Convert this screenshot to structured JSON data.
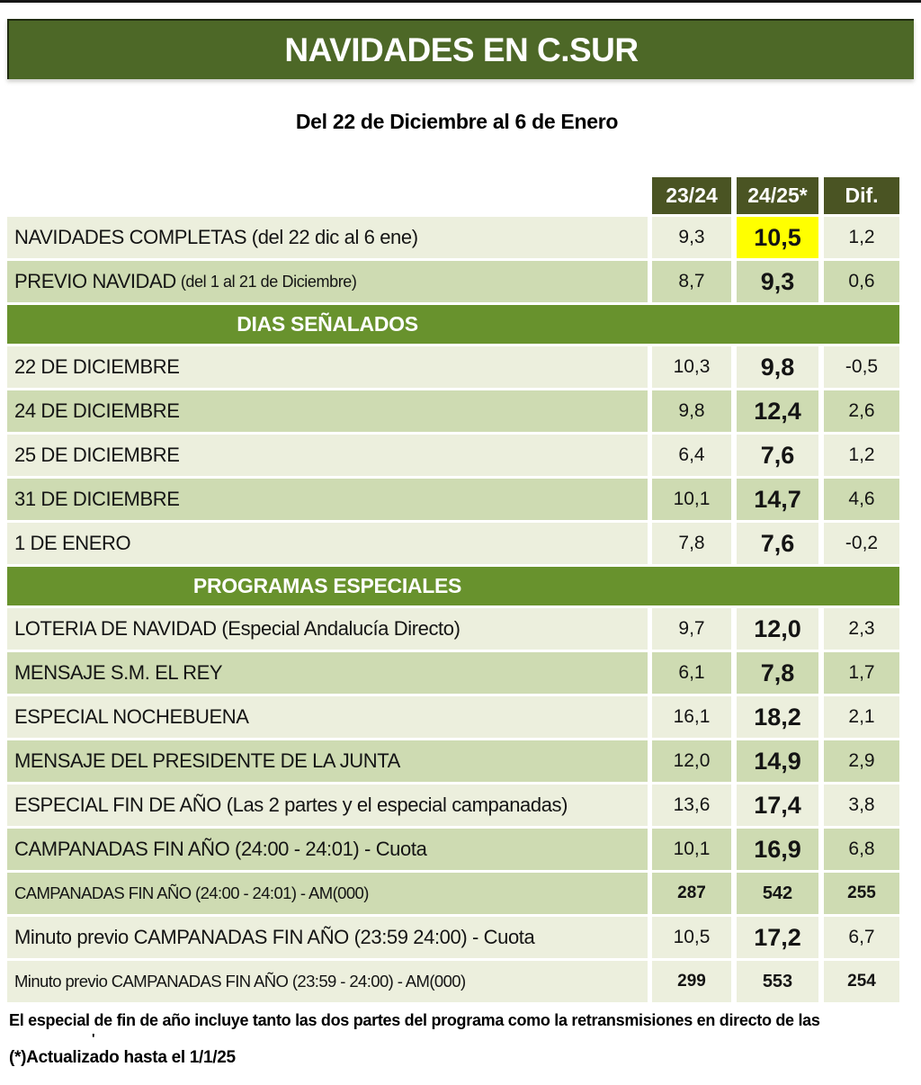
{
  "title": "NAVIDADES EN C.SUR",
  "subtitle": "Del 22 de Diciembre al 6 de Enero",
  "footnotes": [
    "El especial de fin de año incluye tanto las dos partes del programa como la retransmisiones en directo de las",
    "'",
    "(*)Actualizado hasta el 1/1/25"
  ],
  "colors": {
    "title_bar_green": "#4d6827",
    "column_header_green": "#4a5423",
    "section_bar_green": "#68922d",
    "row_light": "#ecefdd",
    "row_dark": "#cedbb2",
    "highlight_yellow": "#ffff00",
    "header_text": "#ffffff",
    "body_text": "#141414"
  },
  "chart_data": {
    "type": "table",
    "title": "NAVIDADES EN C.SUR",
    "subtitle": "Del 22 de Diciembre al 6 de Enero",
    "columns": [
      "23/24",
      "24/25*",
      "Dif."
    ],
    "rows": [
      {
        "type": "data",
        "label": "NAVIDADES COMPLETAS (del 22  dic al 6 ene)",
        "values": [
          "9,3",
          "10,5",
          "1,2"
        ],
        "shade": "light",
        "highlight": true
      },
      {
        "type": "data",
        "label": "PREVIO NAVIDAD",
        "label_detail": "(del 1 al 21 de Diciembre)",
        "values": [
          "8,7",
          "9,3",
          "0,6"
        ],
        "shade": "dark"
      },
      {
        "type": "section",
        "label": "DIAS SEÑALADOS"
      },
      {
        "type": "data",
        "label": "22 DE DICIEMBRE",
        "values": [
          "10,3",
          "9,8",
          "-0,5"
        ],
        "shade": "light"
      },
      {
        "type": "data",
        "label": "24 DE DICIEMBRE",
        "values": [
          "9,8",
          "12,4",
          "2,6"
        ],
        "shade": "dark"
      },
      {
        "type": "data",
        "label": "25 DE DICIEMBRE",
        "values": [
          "6,4",
          "7,6",
          "1,2"
        ],
        "shade": "light"
      },
      {
        "type": "data",
        "label": "31 DE DICIEMBRE",
        "values": [
          "10,1",
          "14,7",
          "4,6"
        ],
        "shade": "dark"
      },
      {
        "type": "data",
        "label": "1 DE ENERO",
        "values": [
          "7,8",
          "7,6",
          "-0,2"
        ],
        "shade": "light"
      },
      {
        "type": "section",
        "label": "PROGRAMAS ESPECIALES"
      },
      {
        "type": "data",
        "label": "LOTERIA DE NAVIDAD (Especial Andalucía Directo)",
        "values": [
          "9,7",
          "12,0",
          "2,3"
        ],
        "shade": "light"
      },
      {
        "type": "data",
        "label": "MENSAJE S.M. EL REY",
        "values": [
          "6,1",
          "7,8",
          "1,7"
        ],
        "shade": "dark"
      },
      {
        "type": "data",
        "label": "ESPECIAL NOCHEBUENA",
        "values": [
          "16,1",
          "18,2",
          "2,1"
        ],
        "shade": "light"
      },
      {
        "type": "data",
        "label": "MENSAJE DEL PRESIDENTE DE LA JUNTA",
        "values": [
          "12,0",
          "14,9",
          "2,9"
        ],
        "shade": "dark"
      },
      {
        "type": "data",
        "label": "ESPECIAL FIN DE AÑO (Las 2 partes y el especial campanadas)",
        "values": [
          "13,6",
          "17,4",
          "3,8"
        ],
        "shade": "light"
      },
      {
        "type": "data",
        "label": "CAMPANADAS FIN AÑO (24:00 - 24:01) - Cuota",
        "values": [
          "10,1",
          "16,9",
          "6,8"
        ],
        "shade": "dark"
      },
      {
        "type": "data",
        "label": "CAMPANADAS FIN AÑO (24:00 - 24:01) - AM(000)",
        "values": [
          "287",
          "542",
          "255"
        ],
        "shade": "dark",
        "small": true
      },
      {
        "type": "data",
        "label": "Minuto previo CAMPANADAS FIN AÑO (23:59 24:00) - Cuota",
        "values": [
          "10,5",
          "17,2",
          "6,7"
        ],
        "shade": "light"
      },
      {
        "type": "data",
        "label": "Minuto previo CAMPANADAS FIN AÑO (23:59 - 24:00) - AM(000)",
        "values": [
          "299",
          "553",
          "254"
        ],
        "shade": "light",
        "small": true
      }
    ]
  }
}
